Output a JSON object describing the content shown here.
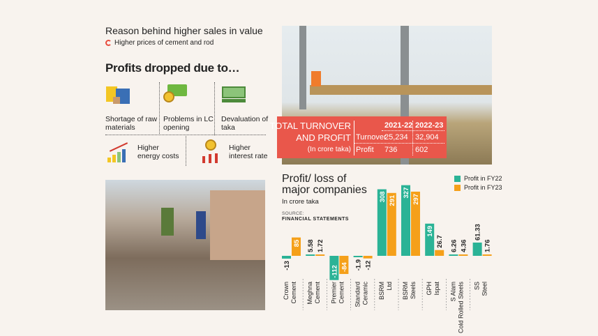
{
  "reason": {
    "title": "Reason behind higher sales in value",
    "item": "Higher prices of cement and rod"
  },
  "profits": {
    "title": "Profits dropped due to…",
    "causes": [
      {
        "label": "Shortage of raw materials",
        "icon": "warehouse-icon"
      },
      {
        "label": "Problems in LC opening",
        "icon": "money-coin-icon"
      },
      {
        "label": "Devaluation of taka",
        "icon": "banknote-icon"
      },
      {
        "label": "Higher energy costs",
        "icon": "rising-bar-chart-icon"
      },
      {
        "label": "Higher interest rate",
        "icon": "sun-up-arrows-icon"
      }
    ]
  },
  "turnover": {
    "title1": "TOTAL TURNOVER",
    "title2": "AND PROFIT",
    "unit": "(In crore taka)",
    "years": [
      "2021-22",
      "2022-23"
    ],
    "rows": [
      {
        "label": "Turnover",
        "values": [
          "25,234",
          "32,904"
        ]
      },
      {
        "label": "Profit",
        "values": [
          "736",
          "602"
        ]
      }
    ]
  },
  "chart_data": {
    "type": "bar",
    "title": "Profit/ loss of major companies",
    "subtitle": "In crore taka",
    "source_label": "SOURCE:",
    "source": "FINANCIAL STATEMENTS",
    "categories": [
      "Crown Cement",
      "Meghna Cement",
      "Premier Cement",
      "Standard Ceramic",
      "BSRM Ltd",
      "BSRM Steels",
      "GPH Ispat",
      "S Alam Cold Rolled Steels",
      "SS Steel"
    ],
    "series": [
      {
        "name": "Profit in FY22",
        "color": "#2bb396",
        "values": [
          -13,
          5.58,
          -112,
          -1.9,
          308,
          327,
          149,
          6.26,
          61.33
        ],
        "labels": [
          "-13",
          "5.58",
          "-112",
          "-1.9",
          "308",
          "327",
          "149",
          "6.26",
          "61.33"
        ]
      },
      {
        "name": "Profit in FY23",
        "color": "#f5a01a",
        "values": [
          85,
          1.72,
          -84,
          -12,
          291,
          297,
          26.7,
          4.36,
          1.76
        ],
        "labels": [
          "85",
          "1.72",
          "-84",
          "-12",
          "291",
          "297",
          "26.7",
          "4.36",
          "1.76"
        ]
      }
    ],
    "legend": "top-right",
    "grid": false
  }
}
